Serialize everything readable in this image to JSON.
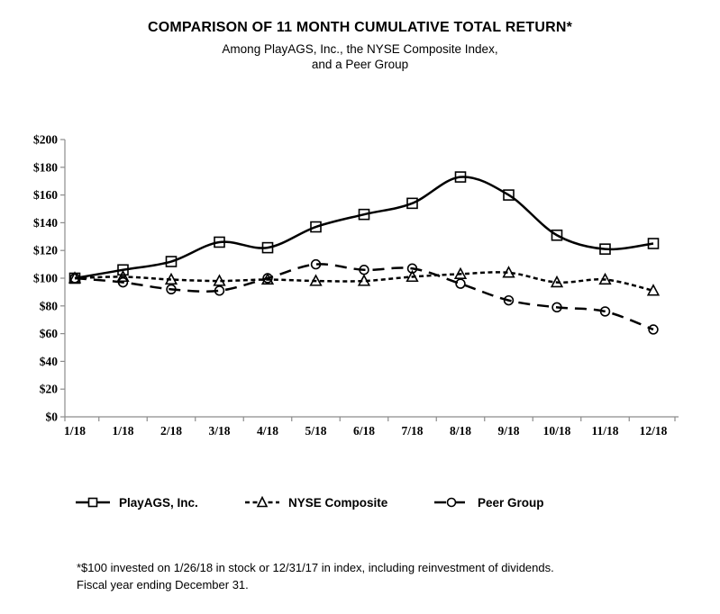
{
  "colors": {
    "background": "#ffffff",
    "line": "#000000",
    "axis": "#8c8c8c",
    "text": "#000000"
  },
  "chart_data": {
    "type": "line",
    "title": "COMPARISON OF 11 MONTH CUMULATIVE TOTAL RETURN*",
    "subtitle_lines": [
      "Among PlayAGS, Inc., the NYSE Composite Index,",
      "and a Peer Group"
    ],
    "categories": [
      "1/18",
      "1/18",
      "2/18",
      "3/18",
      "4/18",
      "5/18",
      "6/18",
      "7/18",
      "8/18",
      "9/18",
      "10/18",
      "11/18",
      "12/18"
    ],
    "series": [
      {
        "name": "PlayAGS, Inc.",
        "marker": "square",
        "dash": "solid",
        "values": [
          100,
          106,
          112,
          126,
          122,
          137,
          146,
          154,
          173,
          160,
          131,
          121,
          125
        ]
      },
      {
        "name": "NYSE Composite",
        "marker": "triangle",
        "dash": "short-dash",
        "values": [
          100,
          101,
          99,
          98,
          99,
          98,
          98,
          101,
          103,
          104,
          97,
          99,
          91
        ]
      },
      {
        "name": "Peer Group",
        "marker": "circle",
        "dash": "long-dash",
        "values": [
          100,
          97,
          92,
          91,
          100,
          110,
          106,
          107,
          96,
          84,
          79,
          76,
          63
        ]
      }
    ],
    "xlabel": "",
    "ylabel": "",
    "ytick_prefix": "$",
    "ylim": [
      0,
      200
    ],
    "ytick_step": 20,
    "grid": false,
    "legend_position": "bottom"
  },
  "footnote": {
    "line1": "*$100 invested on 1/26/18 in stock or 12/31/17 in index, including reinvestment of dividends.",
    "line2": "Fiscal year ending December 31."
  }
}
